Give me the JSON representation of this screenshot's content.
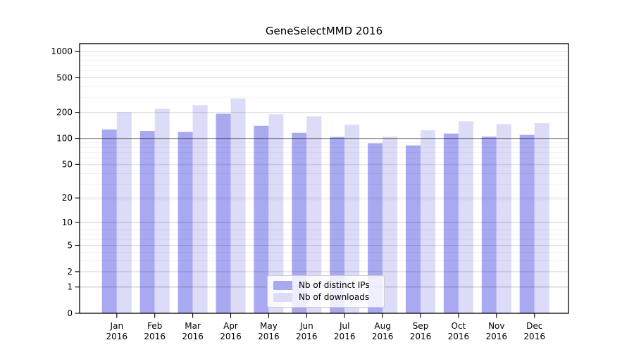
{
  "chart_data": {
    "type": "bar",
    "title": "GeneSelectMMD 2016",
    "categories": [
      "Jan",
      "Feb",
      "Mar",
      "Apr",
      "May",
      "Jun",
      "Jul",
      "Aug",
      "Sep",
      "Oct",
      "Nov",
      "Dec"
    ],
    "category_year": "2016",
    "series": [
      {
        "name": "Nb of distinct IPs",
        "color": "#a9a9f2",
        "values": [
          127,
          122,
          119,
          193,
          140,
          116,
          104,
          88,
          83,
          114,
          105,
          110
        ]
      },
      {
        "name": "Nb of downloads",
        "color": "#dcdcf8",
        "values": [
          201,
          219,
          243,
          289,
          190,
          180,
          144,
          105,
          124,
          158,
          147,
          150
        ]
      }
    ],
    "yscale": "log10(1+y)",
    "y_ticks": [
      0,
      1,
      2,
      5,
      10,
      20,
      50,
      100,
      200,
      500,
      1000
    ],
    "ylim": [
      0,
      1221
    ],
    "xlabel": "",
    "ylabel": "",
    "grid": true,
    "legend_position": "lower center"
  }
}
